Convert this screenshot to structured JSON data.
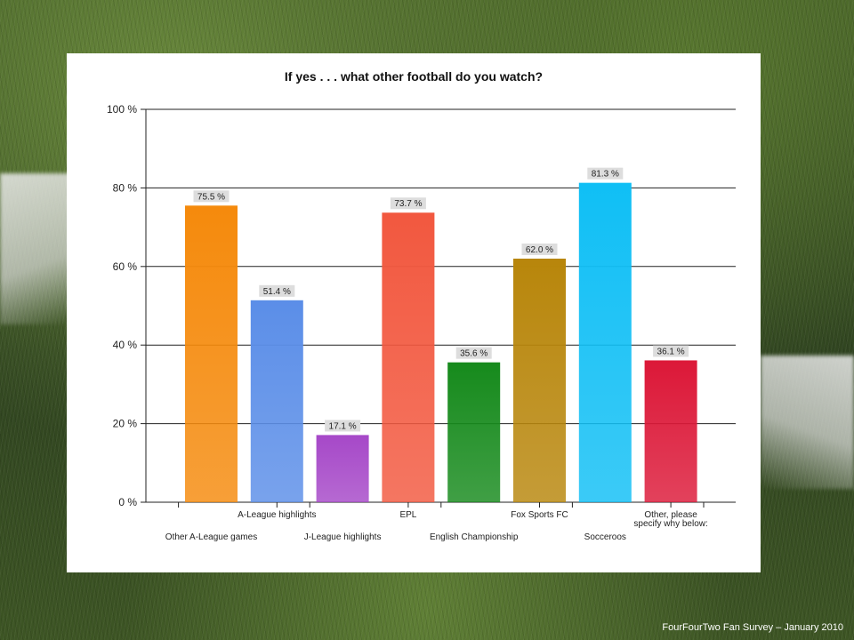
{
  "footer": "FourFourTwo Fan Survey – January 2010",
  "chart_data": {
    "type": "bar",
    "title": "If yes . . . what other football do you watch?",
    "xlabel": "",
    "ylabel": "",
    "ylim": [
      0,
      100
    ],
    "y_ticks": [
      "0 %",
      "20 %",
      "40 %",
      "60 %",
      "80 %",
      "100 %"
    ],
    "grid": true,
    "categories": [
      [
        "Other A-League games"
      ],
      [
        "A-League highlights"
      ],
      [
        "J-League highlights"
      ],
      [
        "EPL"
      ],
      [
        "English Championship"
      ],
      [
        "Fox Sports FC"
      ],
      [
        "Socceroos"
      ],
      [
        "Other, please",
        "specify why below:"
      ]
    ],
    "values": [
      75.5,
      51.4,
      17.1,
      73.7,
      35.6,
      62.0,
      81.3,
      36.1
    ],
    "value_labels": [
      "75.5 %",
      "51.4 %",
      "17.1 %",
      "73.7 %",
      "35.6 %",
      "62.0 %",
      "81.3 %",
      "36.1 %"
    ],
    "colors": [
      "#f58a0c",
      "#5b8ee8",
      "#a648c8",
      "#f2583f",
      "#168a1c",
      "#b8860b",
      "#10bff5",
      "#dc1838"
    ]
  }
}
